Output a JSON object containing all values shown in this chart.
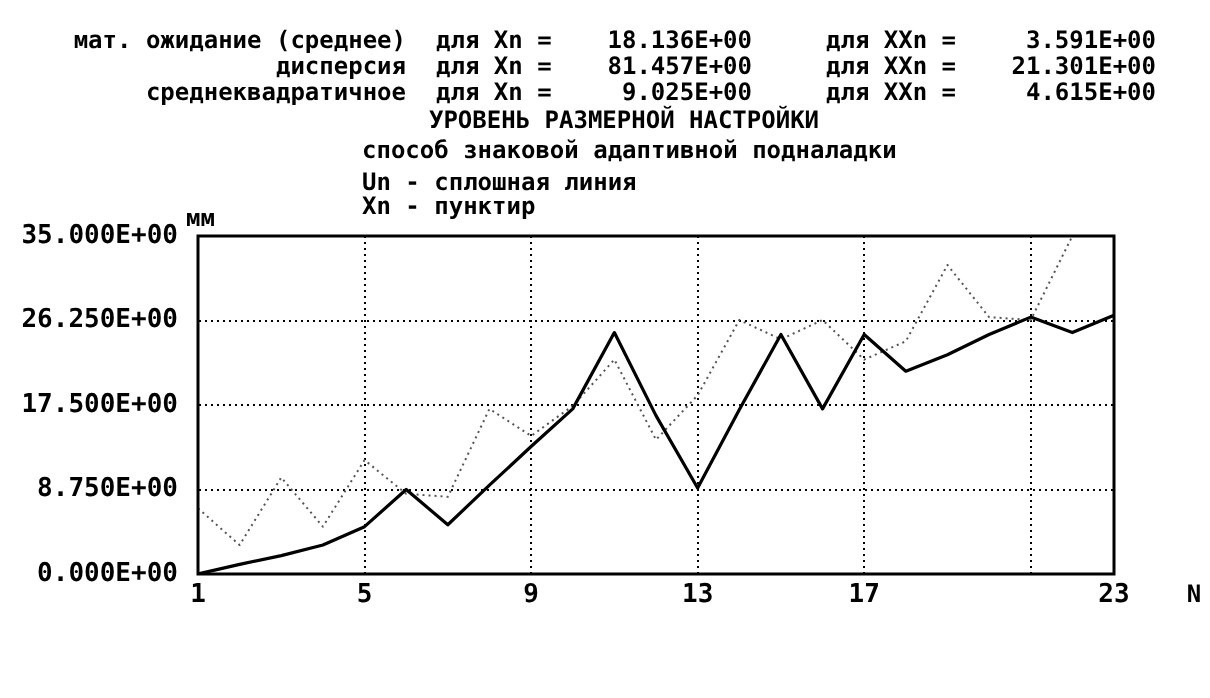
{
  "chart_data": {
    "type": "line",
    "title": "УРОВЕНЬ РАЗМЕРНОЙ НАСТРОЙКИ",
    "subtitle": "способ знаковой адаптивной подналадки",
    "xlabel": "N",
    "ylabel": "мм",
    "annotations": [
      "мат. ожидание (среднее)",
      "для Xn =",
      "18.136E+00",
      "для XXn =",
      "3.591E+00",
      "дисперсия",
      "для Xn =",
      "81.457E+00",
      "для XXn =",
      "21.301E+00",
      "среднеквадратичное",
      "для Xn =",
      "9.025E+00",
      "для XXn =",
      "4.615E+00",
      "Un - сплошная линия",
      "Xn - пунктир"
    ],
    "x": [
      1,
      2,
      3,
      4,
      5,
      6,
      7,
      8,
      9,
      10,
      11,
      12,
      13,
      14,
      15,
      16,
      17,
      18,
      19,
      20,
      21,
      22,
      23
    ],
    "series": [
      {
        "color": "#000000",
        "line_style": "solid",
        "values": [
          0,
          1.0,
          1.9,
          3.0,
          4.9,
          8.75,
          5.1,
          9.2,
          13.2,
          17.1,
          25.0,
          16.4,
          8.9,
          17.0,
          24.8,
          17.1,
          24.8,
          21.0,
          22.7,
          24.8,
          26.6,
          25.0,
          26.8
        ]
      },
      {
        "color": "#555555",
        "line_style": "dotted",
        "values": [
          6.8,
          3.0,
          10.0,
          4.9,
          11.8,
          8.3,
          8.0,
          17.1,
          14.3,
          17.4,
          22.2,
          13.9,
          18.5,
          26.3,
          24.3,
          26.3,
          22.2,
          24.1,
          32.0,
          26.6,
          26.3,
          35,
          null
        ]
      }
    ],
    "xlim": [
      1,
      23
    ],
    "xticks": [
      1,
      5,
      9,
      13,
      17,
      {
        "value": 21,
        "label": null
      },
      23
    ],
    "ylim": [
      0,
      35
    ],
    "yticks": [
      {
        "value": 0,
        "label": "0.000E+00"
      },
      {
        "value": 8.75,
        "label": "8.750E+00"
      },
      {
        "value": 17.5,
        "label": "17.500E+00"
      },
      {
        "value": 26.25,
        "label": "26.250E+00"
      },
      {
        "value": 35,
        "label": "35.000E+00"
      }
    ],
    "grid": true,
    "legend": false,
    "marker": "none"
  }
}
